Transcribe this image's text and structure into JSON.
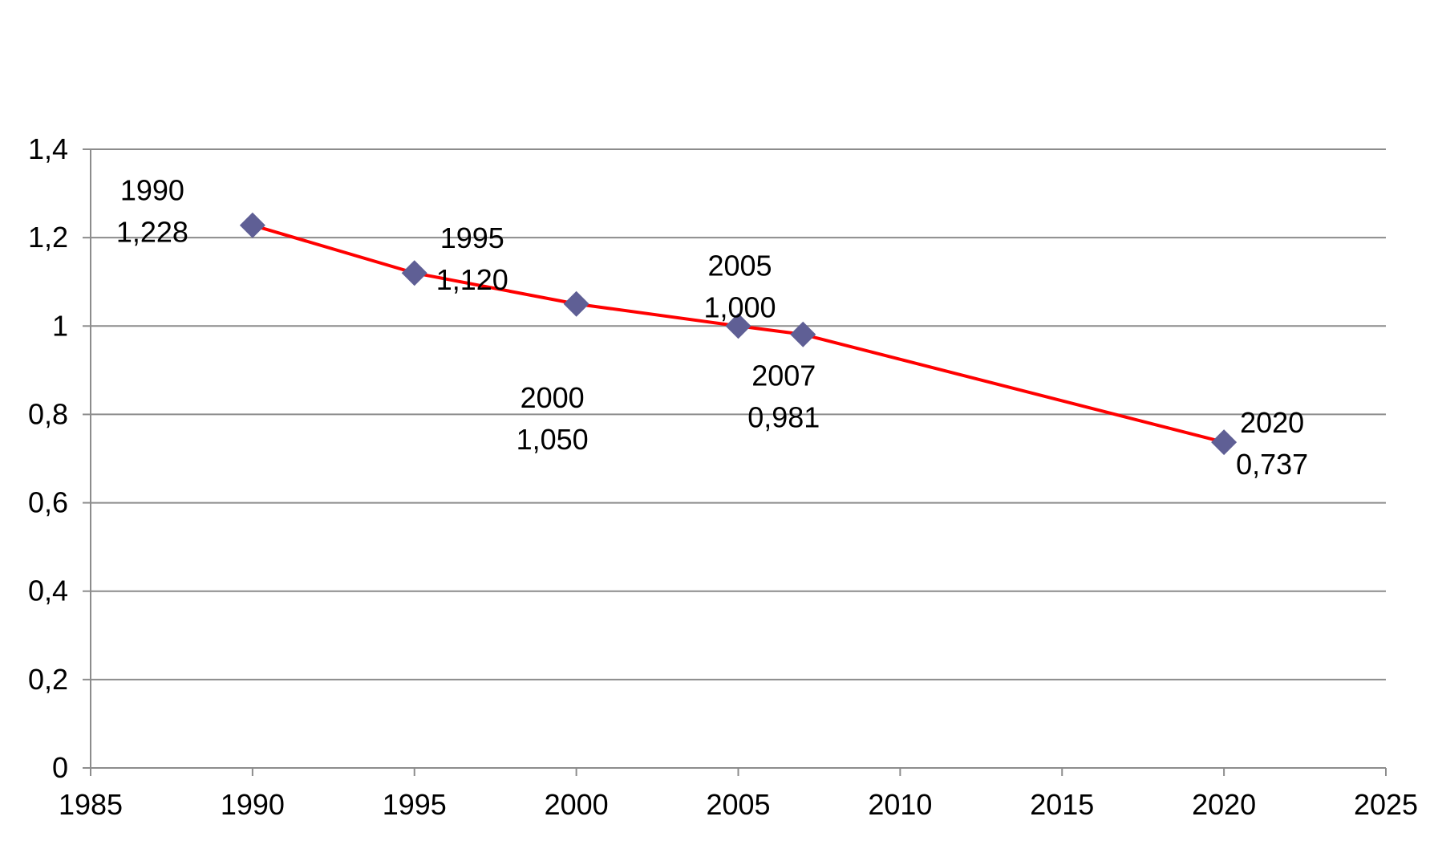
{
  "chart_data": {
    "type": "line",
    "title": "",
    "xlabel": "",
    "ylabel": "",
    "xlim": [
      1985,
      2025
    ],
    "ylim": [
      0,
      1.4
    ],
    "x_ticks": [
      1985,
      1990,
      1995,
      2000,
      2005,
      2010,
      2015,
      2020,
      2025
    ],
    "x_tick_labels": [
      "1985",
      "1990",
      "1995",
      "2000",
      "2005",
      "2010",
      "2015",
      "2020",
      "2025"
    ],
    "y_ticks": [
      0,
      0.2,
      0.4,
      0.6,
      0.8,
      1,
      1.2,
      1.4
    ],
    "y_tick_labels": [
      "0",
      "0,2",
      "0,4",
      "0,6",
      "0,8",
      "1",
      "1,2",
      "1,4"
    ],
    "grid": "horizontal",
    "legend": "none",
    "series": [
      {
        "color": "#ff0000",
        "marker": "diamond",
        "marker_color": "#5f5f95",
        "x": [
          1990,
          1995,
          2000,
          2005,
          2007,
          2020
        ],
        "y": [
          1.228,
          1.12,
          1.05,
          1.0,
          0.981,
          0.737
        ],
        "labels": [
          {
            "year": "1990",
            "value": "1,228",
            "position": "upper-left"
          },
          {
            "year": "1995",
            "value": "1,120",
            "position": "upper-right"
          },
          {
            "year": "2000",
            "value": "1,050",
            "position": "below"
          },
          {
            "year": "2005",
            "value": "1,000",
            "position": "above"
          },
          {
            "year": "2007",
            "value": "0,981",
            "position": "below-left"
          },
          {
            "year": "2020",
            "value": "0,737",
            "position": "right"
          }
        ]
      }
    ]
  }
}
